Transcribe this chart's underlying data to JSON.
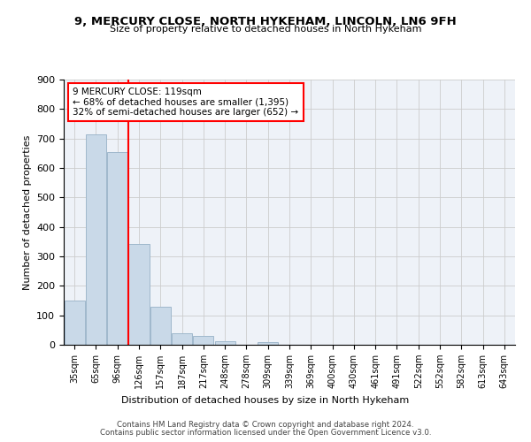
{
  "title": "9, MERCURY CLOSE, NORTH HYKEHAM, LINCOLN, LN6 9FH",
  "subtitle": "Size of property relative to detached houses in North Hykeham",
  "xlabel": "Distribution of detached houses by size in North Hykeham",
  "ylabel": "Number of detached properties",
  "categories": [
    "35sqm",
    "65sqm",
    "96sqm",
    "126sqm",
    "157sqm",
    "187sqm",
    "217sqm",
    "248sqm",
    "278sqm",
    "309sqm",
    "339sqm",
    "369sqm",
    "400sqm",
    "430sqm",
    "461sqm",
    "491sqm",
    "522sqm",
    "552sqm",
    "582sqm",
    "613sqm",
    "643sqm"
  ],
  "values": [
    150,
    715,
    655,
    343,
    130,
    40,
    30,
    12,
    0,
    10,
    0,
    0,
    0,
    0,
    0,
    0,
    0,
    0,
    0,
    0,
    0
  ],
  "bar_color": "#c9d9e8",
  "bar_edgecolor": "#a0b8cc",
  "vline_x_index": 2.5,
  "vline_color": "red",
  "annotation_text": "9 MERCURY CLOSE: 119sqm\n← 68% of detached houses are smaller (1,395)\n32% of semi-detached houses are larger (652) →",
  "annotation_box_color": "white",
  "annotation_box_edgecolor": "red",
  "ylim": [
    0,
    900
  ],
  "yticks": [
    0,
    100,
    200,
    300,
    400,
    500,
    600,
    700,
    800,
    900
  ],
  "grid_color": "#cccccc",
  "bg_color": "#eef2f8",
  "footer1": "Contains HM Land Registry data © Crown copyright and database right 2024.",
  "footer2": "Contains public sector information licensed under the Open Government Licence v3.0."
}
